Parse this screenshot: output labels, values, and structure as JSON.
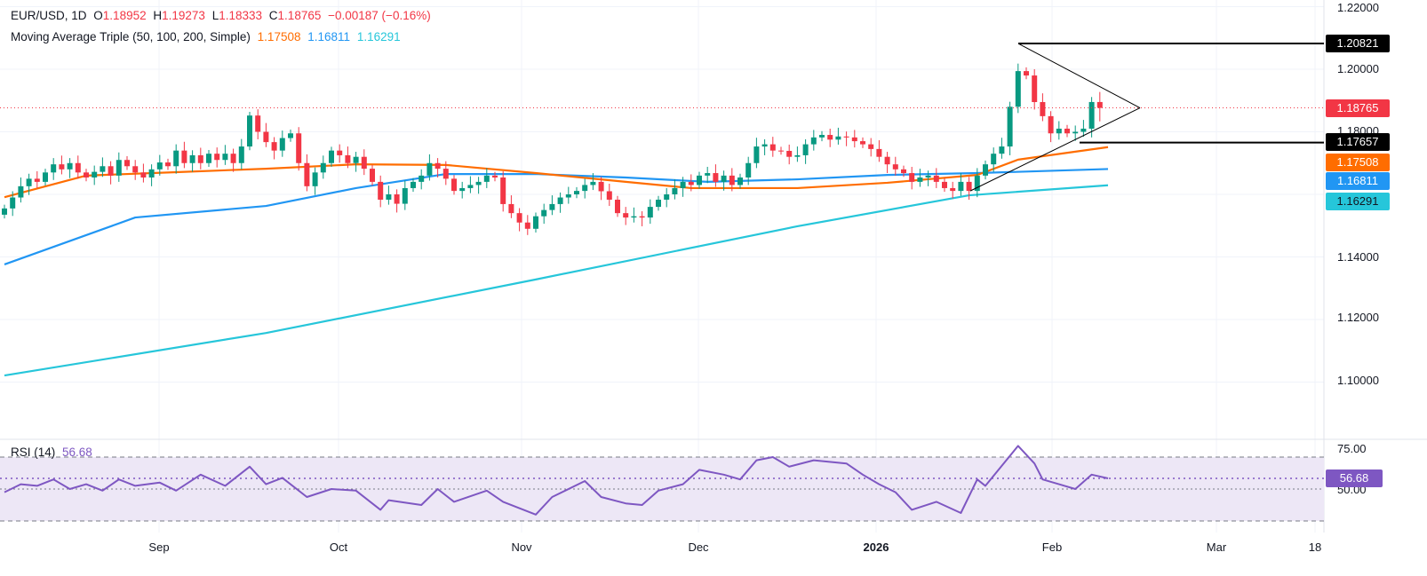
{
  "header": {
    "symbol": "EUR/USD, 1D",
    "open_label": "O",
    "open": "1.18952",
    "high_label": "H",
    "high": "1.19273",
    "low_label": "L",
    "low": "1.18333",
    "close_label": "C",
    "close": "1.18765",
    "change": "−0.00187 (−0.16%)"
  },
  "ma_legend": {
    "title": "Moving Average Triple (50, 100, 200, Simple)",
    "ma50": "1.17508",
    "ma100": "1.16811",
    "ma200": "1.16291"
  },
  "rsi_legend": {
    "title": "RSI (14)",
    "value": "56.68"
  },
  "colors": {
    "up": "#089981",
    "down": "#f23645",
    "ma50": "#ff6d00",
    "ma100": "#2196f3",
    "ma200": "#26c6da",
    "rsi": "#7e57c2",
    "rsi_band": "#ede7f6"
  },
  "price_axis": [
    "1.22000",
    "1.20000",
    "1.18000",
    "1.14000",
    "1.12000",
    "1.10000"
  ],
  "rsi_axis": [
    "75.00",
    "50.00"
  ],
  "price_tags": {
    "resistance": "1.20821",
    "last": "1.18765",
    "support": "1.17657",
    "ma50": "1.17508",
    "ma100": "1.16811",
    "ma200": "1.16291",
    "rsi": "56.68"
  },
  "time_axis": [
    "Sep",
    "Oct",
    "Nov",
    "Dec",
    "2026",
    "Feb",
    "Mar",
    "18"
  ],
  "chart_data": {
    "type": "candlestick",
    "ylim": [
      1.09,
      1.222
    ],
    "last_bar": {
      "open": 1.18952,
      "high": 1.19273,
      "low": 1.18333,
      "close": 1.18765
    },
    "closes": [
      1.1555,
      1.159,
      1.1626,
      1.165,
      1.164,
      1.167,
      1.1696,
      1.168,
      1.17,
      1.167,
      1.1654,
      1.1672,
      1.169,
      1.166,
      1.171,
      1.169,
      1.167,
      1.1654,
      1.168,
      1.1702,
      1.169,
      1.174,
      1.17,
      1.1725,
      1.17,
      1.173,
      1.171,
      1.173,
      1.17,
      1.1753,
      1.1852,
      1.18,
      1.1767,
      1.174,
      1.178,
      1.1795,
      1.17,
      1.1626,
      1.167,
      1.17,
      1.174,
      1.1725,
      1.17,
      1.172,
      1.1682,
      1.164,
      1.1583,
      1.16,
      1.157,
      1.162,
      1.164,
      1.166,
      1.17,
      1.1682,
      1.165,
      1.1611,
      1.162,
      1.163,
      1.164,
      1.166,
      1.1654,
      1.1569,
      1.154,
      1.151,
      1.149,
      1.153,
      1.155,
      1.1569,
      1.159,
      1.16,
      1.1611,
      1.163,
      1.164,
      1.161,
      1.1583,
      1.154,
      1.1526,
      1.153,
      1.1526,
      1.156,
      1.1583,
      1.16,
      1.162,
      1.164,
      1.163,
      1.166,
      1.1668,
      1.164,
      1.166,
      1.163,
      1.1654,
      1.17,
      1.1753,
      1.176,
      1.174,
      1.1739,
      1.172,
      1.1725,
      1.176,
      1.1782,
      1.179,
      1.1775,
      1.1785,
      1.1782,
      1.177,
      1.176,
      1.1745,
      1.172,
      1.1696,
      1.168,
      1.1668,
      1.164,
      1.1654,
      1.166,
      1.164,
      1.162,
      1.1611,
      1.164,
      1.1611,
      1.166,
      1.1696,
      1.173,
      1.1753,
      1.188,
      1.1994,
      1.198,
      1.1895,
      1.185,
      1.1795,
      1.181,
      1.1795,
      1.18,
      1.181,
      1.18952,
      1.18765
    ],
    "ma50": [
      [
        0,
        1.1591
      ],
      [
        10,
        1.166
      ],
      [
        21,
        1.1671
      ],
      [
        32,
        1.1682
      ],
      [
        43,
        1.1696
      ],
      [
        54,
        1.1694
      ],
      [
        65,
        1.1668
      ],
      [
        76,
        1.164
      ],
      [
        84,
        1.162
      ],
      [
        97,
        1.162
      ],
      [
        108,
        1.1637
      ],
      [
        119,
        1.1662
      ],
      [
        124,
        1.1711
      ],
      [
        135,
        1.1751
      ]
    ],
    "ma100": [
      [
        0,
        1.1376
      ],
      [
        16,
        1.1526
      ],
      [
        32,
        1.1563
      ],
      [
        43,
        1.162
      ],
      [
        54,
        1.1665
      ],
      [
        65,
        1.1665
      ],
      [
        76,
        1.1654
      ],
      [
        86,
        1.164
      ],
      [
        97,
        1.1648
      ],
      [
        108,
        1.1662
      ],
      [
        119,
        1.1668
      ],
      [
        135,
        1.1681
      ]
    ],
    "ma200": [
      [
        0,
        1.1021
      ],
      [
        32,
        1.1157
      ],
      [
        65,
        1.1328
      ],
      [
        97,
        1.1498
      ],
      [
        118,
        1.1597
      ],
      [
        135,
        1.1629
      ]
    ],
    "triangle": {
      "apex_price": 1.18765,
      "upper_start": 1.20821,
      "lower_start": 1.1611
    },
    "rsi": {
      "levels": [
        70,
        50,
        30
      ],
      "ylim": [
        20,
        82
      ],
      "points": [
        [
          0,
          48
        ],
        [
          2,
          53
        ],
        [
          4,
          52
        ],
        [
          6,
          56
        ],
        [
          8,
          50
        ],
        [
          10,
          53
        ],
        [
          12,
          49
        ],
        [
          14,
          56
        ],
        [
          16,
          52
        ],
        [
          19,
          54
        ],
        [
          21,
          49
        ],
        [
          24,
          59
        ],
        [
          27,
          52
        ],
        [
          30,
          64
        ],
        [
          32,
          53
        ],
        [
          34,
          57
        ],
        [
          37,
          45
        ],
        [
          40,
          50
        ],
        [
          43,
          49
        ],
        [
          46,
          37
        ],
        [
          47,
          43
        ],
        [
          51,
          40
        ],
        [
          53,
          50
        ],
        [
          55,
          42
        ],
        [
          59,
          49
        ],
        [
          61,
          42
        ],
        [
          65,
          34
        ],
        [
          67,
          45
        ],
        [
          71,
          55
        ],
        [
          73,
          45
        ],
        [
          76,
          41
        ],
        [
          78,
          40
        ],
        [
          80,
          49
        ],
        [
          83,
          53
        ],
        [
          85,
          62
        ],
        [
          88,
          59
        ],
        [
          90,
          56
        ],
        [
          92,
          68
        ],
        [
          94,
          70
        ],
        [
          96,
          64
        ],
        [
          99,
          68
        ],
        [
          103,
          66
        ],
        [
          105,
          59
        ],
        [
          107,
          53
        ],
        [
          109,
          48
        ],
        [
          111,
          37
        ],
        [
          114,
          42
        ],
        [
          117,
          35
        ],
        [
          119,
          56
        ],
        [
          120,
          52
        ],
        [
          124,
          77
        ],
        [
          126,
          66
        ],
        [
          127,
          56
        ],
        [
          129,
          53
        ],
        [
          131,
          50
        ],
        [
          133,
          59
        ],
        [
          135,
          56.68
        ]
      ]
    }
  }
}
